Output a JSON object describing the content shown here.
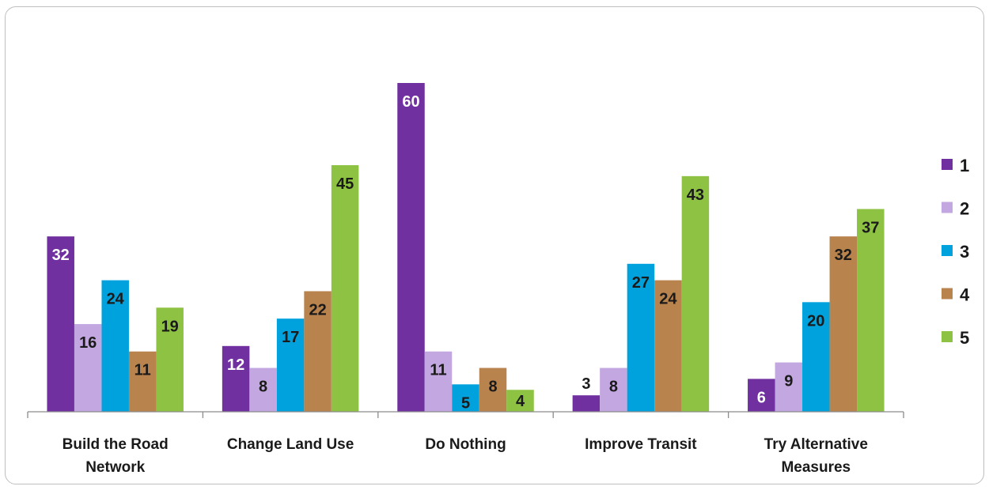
{
  "chart_data": {
    "type": "bar",
    "categories": [
      [
        "Build the Road",
        "Network"
      ],
      [
        "Change Land Use"
      ],
      [
        "Do Nothing"
      ],
      [
        "Improve Transit"
      ],
      [
        "Try Alternative",
        "Measures"
      ]
    ],
    "series": [
      {
        "name": "1",
        "color": "#7030a0",
        "label_color": "#ffffff",
        "values": [
          32,
          12,
          60,
          3,
          6
        ]
      },
      {
        "name": "2",
        "color": "#c3a7e0",
        "label_color": "#1a1a1a",
        "values": [
          16,
          8,
          11,
          8,
          9
        ]
      },
      {
        "name": "3",
        "color": "#00a2dd",
        "label_color": "#1a1a1a",
        "values": [
          24,
          17,
          5,
          27,
          20
        ]
      },
      {
        "name": "4",
        "color": "#b8834d",
        "label_color": "#1a1a1a",
        "values": [
          11,
          22,
          8,
          24,
          32
        ]
      },
      {
        "name": "5",
        "color": "#8dc242",
        "label_color": "#1a1a1a",
        "values": [
          19,
          45,
          4,
          43,
          37
        ]
      }
    ],
    "ylim": [
      0,
      60
    ],
    "legend_position": "right",
    "grid": false
  }
}
